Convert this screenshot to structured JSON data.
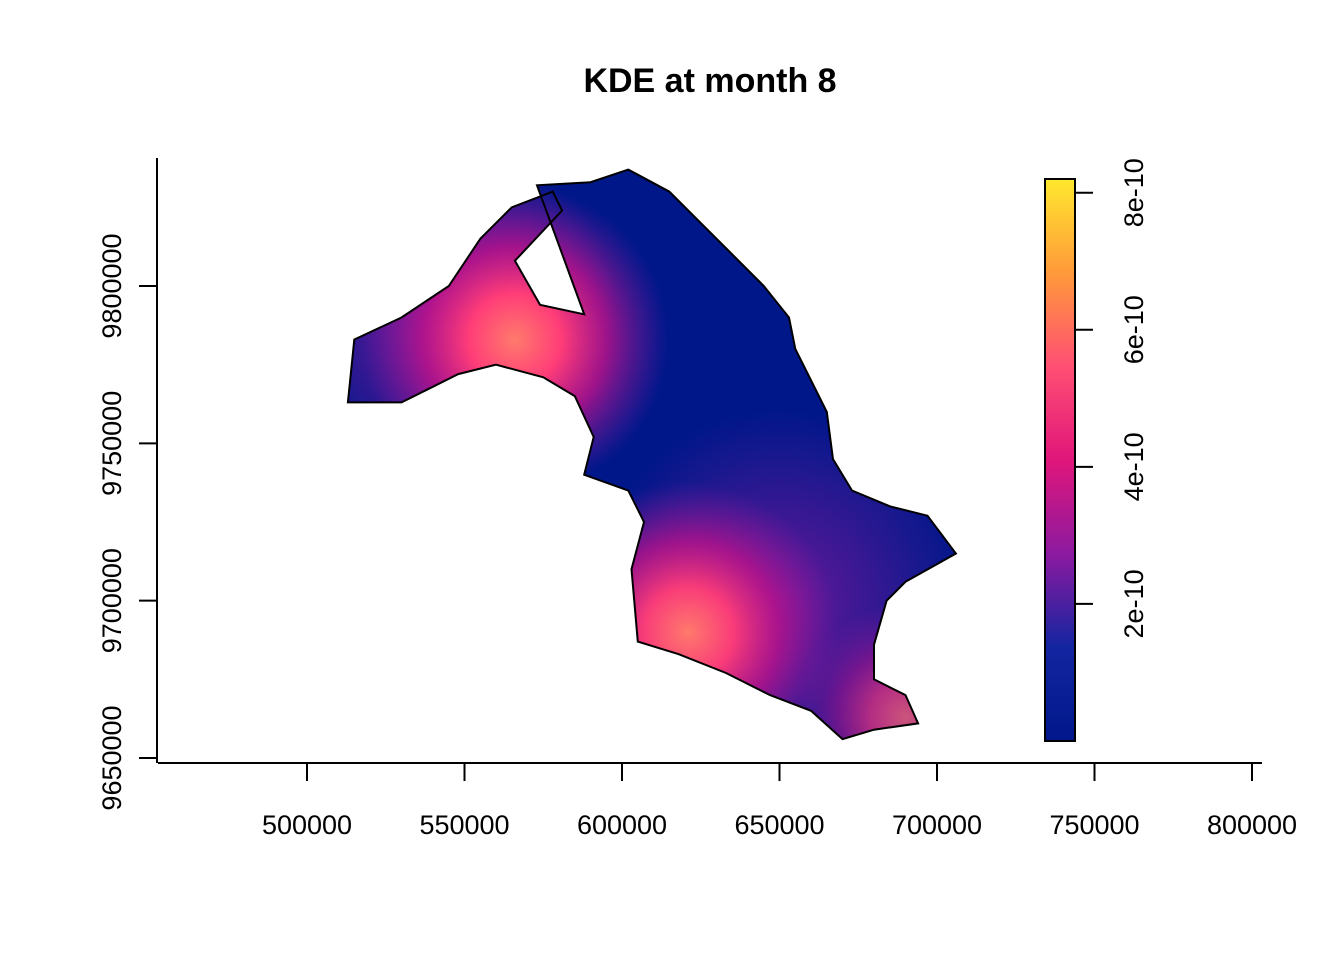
{
  "chart_data": {
    "type": "heatmap",
    "title": "KDE at month 8",
    "xlabel": "",
    "ylabel": "",
    "xlim": [
      450000,
      800000
    ],
    "ylim": [
      9650000,
      9840000
    ],
    "x_ticks": [
      500000,
      550000,
      600000,
      650000,
      700000,
      750000,
      800000
    ],
    "x_tick_labels": [
      "500000",
      "550000",
      "600000",
      "650000",
      "700000",
      "750000",
      "800000"
    ],
    "y_ticks": [
      9650000,
      9700000,
      9750000,
      9800000
    ],
    "y_tick_labels": [
      "9650000",
      "9700000",
      "9750000",
      "9800000"
    ],
    "colorbar": {
      "range": [
        0,
        8.2e-10
      ],
      "ticks": [
        2e-10,
        4e-10,
        6e-10,
        8e-10
      ],
      "tick_labels": [
        "2e-10",
        "4e-10",
        "6e-10",
        "8e-10"
      ],
      "palette": [
        "#0D0887",
        "#6A00A8",
        "#B12A90",
        "#E16462",
        "#FCA636",
        "#F0F921"
      ],
      "palette_display": [
        "#00178a",
        "#1325a0",
        "#8c1aa0",
        "#e0167a",
        "#ff4f73",
        "#ff9a3a",
        "#ffe82e"
      ]
    },
    "hotspots": [
      {
        "x": 566000,
        "y": 9783000,
        "value": 5.5e-10
      },
      {
        "x": 621000,
        "y": 9690000,
        "value": 5.3e-10
      },
      {
        "x": 690000,
        "y": 9663000,
        "value": 3.2e-10
      }
    ],
    "region_outline": [
      [
        513000,
        9763000
      ],
      [
        515000,
        9783000
      ],
      [
        530000,
        9790000
      ],
      [
        545000,
        9800000
      ],
      [
        555000,
        9815000
      ],
      [
        565000,
        9825000
      ],
      [
        578000,
        9830000
      ],
      [
        581000,
        9824000
      ],
      [
        566000,
        9808000
      ],
      [
        574000,
        9794000
      ],
      [
        588000,
        9791000
      ],
      [
        573000,
        9832000
      ],
      [
        590000,
        9833000
      ],
      [
        602000,
        9837000
      ],
      [
        615000,
        9830000
      ],
      [
        625000,
        9820000
      ],
      [
        635000,
        9810000
      ],
      [
        645000,
        9800000
      ],
      [
        653000,
        9790000
      ],
      [
        655000,
        9780000
      ],
      [
        665000,
        9760000
      ],
      [
        667000,
        9745000
      ],
      [
        673000,
        9735000
      ],
      [
        685000,
        9730000
      ],
      [
        697000,
        9727000
      ],
      [
        706000,
        9715000
      ],
      [
        690000,
        9706000
      ],
      [
        684000,
        9700000
      ],
      [
        680000,
        9686000
      ],
      [
        680000,
        9675000
      ],
      [
        690000,
        9670000
      ],
      [
        694000,
        9661000
      ],
      [
        680000,
        9659000
      ],
      [
        670000,
        9656000
      ],
      [
        660000,
        9665000
      ],
      [
        647000,
        9670000
      ],
      [
        633000,
        9677000
      ],
      [
        618000,
        9683000
      ],
      [
        605000,
        9687000
      ],
      [
        603000,
        9710000
      ],
      [
        607000,
        9725000
      ],
      [
        602000,
        9735000
      ],
      [
        588000,
        9740000
      ],
      [
        591000,
        9752000
      ],
      [
        585000,
        9765000
      ],
      [
        575000,
        9771000
      ],
      [
        560000,
        9775000
      ],
      [
        548000,
        9772000
      ],
      [
        540000,
        9768000
      ],
      [
        530000,
        9763000
      ]
    ]
  }
}
